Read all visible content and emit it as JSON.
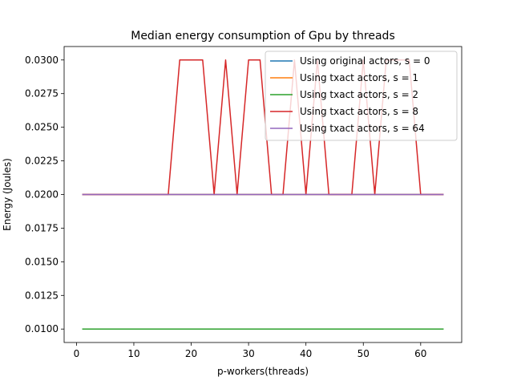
{
  "chart_data": {
    "type": "line",
    "title": "Median energy consumption of Gpu by threads",
    "xlabel": "p-workers(threads)",
    "ylabel": "Energy (Joules)",
    "xlim": [
      -2.15,
      67.15
    ],
    "ylim": [
      0.009,
      0.031
    ],
    "xticks": [
      0,
      10,
      20,
      30,
      40,
      50,
      60
    ],
    "yticks": [
      0.01,
      0.0125,
      0.015,
      0.0175,
      0.02,
      0.0225,
      0.025,
      0.0275,
      0.03
    ],
    "ytick_labels": [
      "0.0100",
      "0.0125",
      "0.0150",
      "0.0175",
      "0.0200",
      "0.0225",
      "0.0250",
      "0.0275",
      "0.0300"
    ],
    "grid": false,
    "legend_position": "top-right",
    "series": [
      {
        "name": "Using original actors, s = 0",
        "color": "#1f77b4",
        "x": [
          1,
          64
        ],
        "y": [
          0.02,
          0.02
        ]
      },
      {
        "name": "Using txact actors, s = 1",
        "color": "#ff7f0e",
        "x": [
          1,
          64
        ],
        "y": [
          0.02,
          0.02
        ]
      },
      {
        "name": "Using txact actors, s = 2",
        "color": "#2ca02c",
        "x": [
          1,
          64
        ],
        "y": [
          0.01,
          0.01
        ]
      },
      {
        "name": "Using txact actors, s = 8",
        "color": "#d62728",
        "x": [
          1,
          16,
          18,
          22,
          24,
          26,
          28,
          30,
          32,
          34,
          36,
          38,
          40,
          42,
          44,
          48,
          50,
          52,
          54,
          58,
          60,
          64
        ],
        "y": [
          0.02,
          0.02,
          0.03,
          0.03,
          0.02,
          0.03,
          0.02,
          0.03,
          0.03,
          0.02,
          0.02,
          0.03,
          0.02,
          0.03,
          0.02,
          0.02,
          0.03,
          0.02,
          0.03,
          0.03,
          0.02,
          0.02
        ]
      },
      {
        "name": "Using txact actors, s = 64",
        "color": "#9467bd",
        "x": [
          1,
          64
        ],
        "y": [
          0.02,
          0.02
        ]
      }
    ]
  }
}
